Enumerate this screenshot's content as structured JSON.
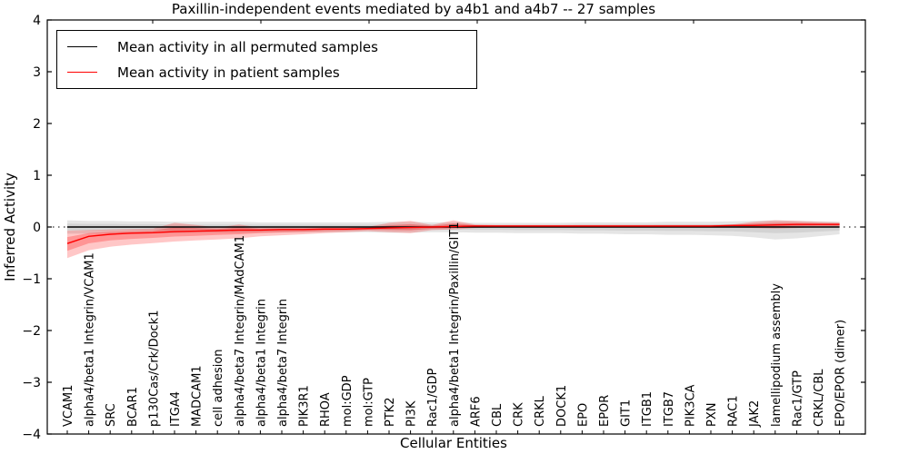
{
  "title": "Paxillin-independent events mediated by a4b1 and a4b7 -- 27 samples",
  "axes": {
    "xlabel": "Cellular Entities",
    "ylabel": "Inferred Activity",
    "ytick_labels": [
      "4",
      "3",
      "2",
      "1",
      "0",
      "−1",
      "−2",
      "−3",
      "−4"
    ],
    "ytick_values": [
      4,
      3,
      2,
      1,
      0,
      -1,
      -2,
      -3,
      -4
    ],
    "ylim": [
      -4,
      4
    ]
  },
  "legend": {
    "entries": [
      {
        "label": "Mean activity in all permuted samples",
        "color": "#000000"
      },
      {
        "label": "Mean activity in patient samples",
        "color": "#ff0000"
      }
    ]
  },
  "colors": {
    "permuted_line": "#000000",
    "patient_line": "#ff0000",
    "axis": "#000000",
    "background": "#ffffff"
  },
  "chart_data": {
    "type": "line",
    "title": "Paxillin-independent events mediated by a4b1 and a4b7 -- 27 samples",
    "xlabel": "Cellular Entities",
    "ylabel": "Inferred Activity",
    "ylim": [
      -4,
      4
    ],
    "grid": false,
    "legend_position": "upper left",
    "zero_line_style": "dotted",
    "categories": [
      "VCAM1",
      "alpha4/beta1 Integrin/VCAM1",
      "SRC",
      "BCAR1",
      "p130Cas/Crk/Dock1",
      "ITGA4",
      "MADCAM1",
      "cell adhesion",
      "alpha4/beta7 Integrin/MAdCAM1",
      "alpha4/beta1 Integrin",
      "alpha4/beta7 Integrin",
      "PIK3R1",
      "RHOA",
      "mol:GDP",
      "mol:GTP",
      "PTK2",
      "PI3K",
      "Rac1/GDP",
      "alpha4/beta1 Integrin/Paxillin/GIT1",
      "ARF6",
      "CBL",
      "CRK",
      "CRKL",
      "DOCK1",
      "EPO",
      "EPOR",
      "GIT1",
      "ITGB1",
      "ITGB7",
      "PIK3CA",
      "PXN",
      "RAC1",
      "JAK2",
      "lamellipodium assembly",
      "Rac1/GTP",
      "CRKL/CBL",
      "EPO/EPOR (dimer)"
    ],
    "series": [
      {
        "name": "Mean activity in all permuted samples",
        "color": "#000000",
        "values": [
          0,
          0,
          0,
          0,
          0,
          0,
          0,
          0,
          0,
          0,
          0,
          0,
          0,
          0,
          0,
          0,
          0,
          0,
          0,
          0,
          0,
          0,
          0,
          0,
          0,
          0,
          0,
          0,
          0,
          0,
          0,
          0,
          0,
          0,
          0,
          0,
          0
        ],
        "band_lo": [
          -0.13,
          -0.13,
          -0.12,
          -0.12,
          -0.12,
          -0.12,
          -0.11,
          -0.11,
          -0.11,
          -0.1,
          -0.1,
          -0.1,
          -0.1,
          -0.1,
          -0.1,
          -0.11,
          -0.11,
          -0.1,
          -0.1,
          -0.11,
          -0.11,
          -0.12,
          -0.12,
          -0.12,
          -0.13,
          -0.13,
          -0.14,
          -0.14,
          -0.15,
          -0.15,
          -0.16,
          -0.17,
          -0.2,
          -0.24,
          -0.22,
          -0.18,
          -0.14
        ],
        "band_hi": [
          0.13,
          0.12,
          0.12,
          0.11,
          0.11,
          0.1,
          0.1,
          0.1,
          0.1,
          0.09,
          0.09,
          0.09,
          0.09,
          0.09,
          0.09,
          0.1,
          0.1,
          0.09,
          0.09,
          0.08,
          0.08,
          0.08,
          0.08,
          0.08,
          0.09,
          0.09,
          0.09,
          0.09,
          0.1,
          0.1,
          0.1,
          0.11,
          0.12,
          0.13,
          0.12,
          0.11,
          0.1
        ]
      },
      {
        "name": "Mean activity in patient samples",
        "color": "#ff0000",
        "values": [
          -0.32,
          -0.18,
          -0.14,
          -0.12,
          -0.11,
          -0.09,
          -0.08,
          -0.07,
          -0.06,
          -0.06,
          -0.05,
          -0.05,
          -0.04,
          -0.04,
          -0.03,
          -0.02,
          -0.01,
          0.0,
          0.01,
          0.02,
          0.02,
          0.02,
          0.02,
          0.02,
          0.02,
          0.02,
          0.02,
          0.02,
          0.02,
          0.02,
          0.02,
          0.03,
          0.03,
          0.04,
          0.05,
          0.05,
          0.05
        ],
        "band_lo": [
          -0.6,
          -0.45,
          -0.38,
          -0.34,
          -0.31,
          -0.28,
          -0.26,
          -0.24,
          -0.22,
          -0.18,
          -0.16,
          -0.14,
          -0.12,
          -0.1,
          -0.08,
          -0.1,
          -0.12,
          -0.06,
          -0.05,
          -0.02,
          -0.01,
          -0.01,
          -0.01,
          -0.01,
          -0.01,
          -0.01,
          -0.01,
          -0.01,
          -0.01,
          -0.01,
          -0.01,
          -0.01,
          -0.02,
          -0.03,
          -0.02,
          0.0,
          0.0
        ],
        "band_hi": [
          -0.07,
          -0.06,
          -0.05,
          -0.04,
          -0.03,
          0.08,
          0.04,
          -0.01,
          0.05,
          -0.01,
          -0.01,
          -0.01,
          0.0,
          0.0,
          0.0,
          0.08,
          0.12,
          0.04,
          0.13,
          0.05,
          0.04,
          0.04,
          0.04,
          0.04,
          0.04,
          0.04,
          0.04,
          0.04,
          0.04,
          0.04,
          0.04,
          0.05,
          0.1,
          0.13,
          0.12,
          0.1,
          0.09
        ]
      }
    ]
  }
}
